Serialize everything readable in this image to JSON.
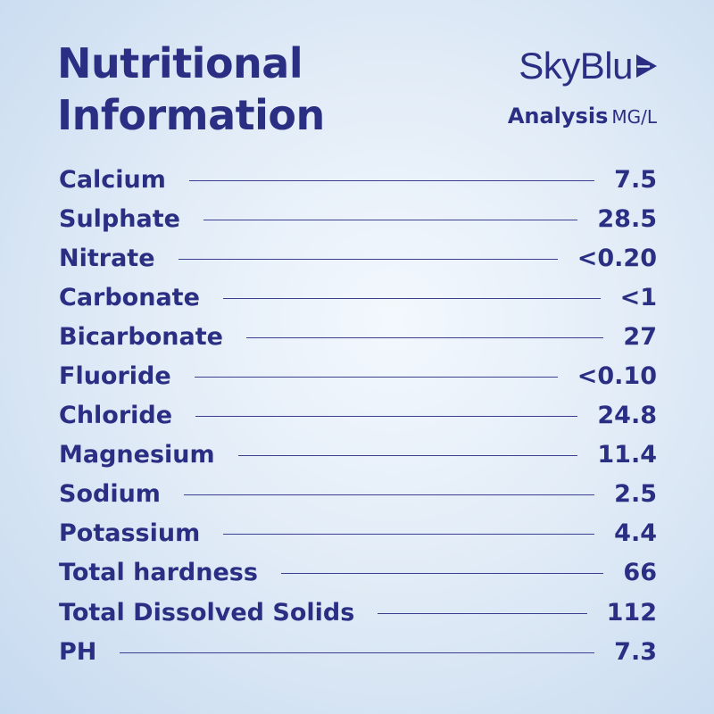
{
  "header": {
    "title_line1": "Nutritional",
    "title_line2": "Information"
  },
  "brand": {
    "logo_text": "SkyBlu",
    "logo_icon": "play-triangle-e-icon",
    "analysis_label": "Analysis",
    "analysis_unit": "MG/L"
  },
  "colors": {
    "text": "#2b2f84",
    "background_center": "#f3f8fd",
    "background_edge": "#c6daef"
  },
  "nutrients": [
    {
      "name": "Calcium",
      "value": "7.5"
    },
    {
      "name": "Sulphate",
      "value": "28.5"
    },
    {
      "name": "Nitrate",
      "value": "<0.20"
    },
    {
      "name": "Carbonate",
      "value": "<1"
    },
    {
      "name": "Bicarbonate",
      "value": "27"
    },
    {
      "name": "Fluoride",
      "value": "<0.10"
    },
    {
      "name": "Chloride",
      "value": "24.8"
    },
    {
      "name": "Magnesium",
      "value": "11.4"
    },
    {
      "name": "Sodium",
      "value": "2.5"
    },
    {
      "name": "Potassium",
      "value": "4.4"
    },
    {
      "name": "Total hardness",
      "value": "66"
    },
    {
      "name": "Total Dissolved Solids",
      "value": "112"
    },
    {
      "name": "PH",
      "value": "7.3"
    }
  ]
}
